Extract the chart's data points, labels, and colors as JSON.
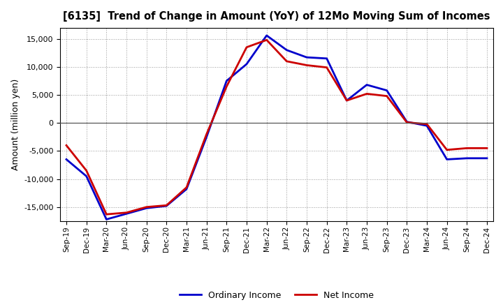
{
  "title": "[6135]  Trend of Change in Amount (YoY) of 12Mo Moving Sum of Incomes",
  "ylabel": "Amount (million yen)",
  "x_labels": [
    "Sep-19",
    "Dec-19",
    "Mar-20",
    "Jun-20",
    "Sep-20",
    "Dec-20",
    "Mar-21",
    "Jun-21",
    "Sep-21",
    "Dec-21",
    "Mar-22",
    "Jun-22",
    "Sep-22",
    "Dec-22",
    "Mar-23",
    "Jun-23",
    "Sep-23",
    "Dec-23",
    "Mar-24",
    "Jun-24",
    "Sep-24",
    "Dec-24"
  ],
  "ordinary_income": [
    -6500,
    -9500,
    -17200,
    -16200,
    -15200,
    -14800,
    -11800,
    -2500,
    7500,
    10500,
    15600,
    13000,
    11700,
    11500,
    4000,
    6800,
    5800,
    200,
    -500,
    -6500,
    -6300,
    -6300
  ],
  "net_income": [
    -4000,
    -8500,
    -16300,
    -16000,
    -15000,
    -14700,
    -11500,
    -2000,
    6500,
    13500,
    14800,
    11000,
    10300,
    9900,
    4000,
    5200,
    4800,
    100,
    -200,
    -4800,
    -4500,
    -4500
  ],
  "ordinary_income_color": "#0000cc",
  "net_income_color": "#cc0000",
  "ylim": [
    -17500,
    17000
  ],
  "yticks": [
    -15000,
    -10000,
    -5000,
    0,
    5000,
    10000,
    15000
  ],
  "background_color": "#ffffff",
  "grid_color": "#999999",
  "legend_labels": [
    "Ordinary Income",
    "Net Income"
  ]
}
